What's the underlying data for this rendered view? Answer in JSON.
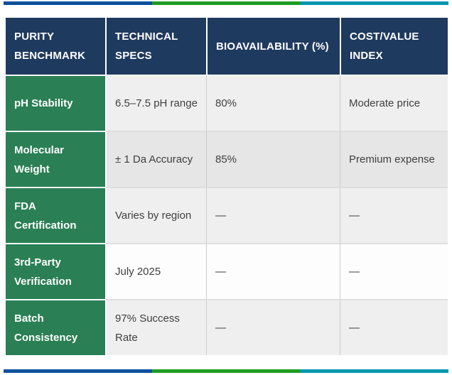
{
  "accent_bar": {
    "segments": [
      {
        "name": "blue",
        "color": "#0d519c"
      },
      {
        "name": "green",
        "color": "#1f9d23"
      },
      {
        "name": "teal",
        "color": "#0397ad"
      }
    ]
  },
  "theme_colors": {
    "header_bg": "#1f3a5f",
    "benchmark_col_bg": "#2a7f54",
    "row_gray": "#efefef",
    "row_highlight": "#e6e6e6",
    "row_white": "#fdfdfd",
    "cell_text": "#3f3f3f",
    "divider_gray": "#cbcbcb"
  },
  "table": {
    "headers": [
      "PURITY BENCHMARK",
      "TECHNICAL SPECS",
      "BIOAVAILABILITY (%)",
      "COST/VALUE INDEX"
    ],
    "rows": [
      {
        "benchmark": "pH Stability",
        "specs": "6.5–7.5 pH range",
        "bioavailability": "80%",
        "cost_value": "Moderate price"
      },
      {
        "benchmark": "Molecular Weight",
        "specs": "± 1 Da Accuracy",
        "bioavailability": "85%",
        "cost_value": "Premium expense"
      },
      {
        "benchmark": "FDA Certification",
        "specs": "Varies by region",
        "bioavailability": "—",
        "cost_value": "—"
      },
      {
        "benchmark": "3rd-Party Verification",
        "specs": "July 2025",
        "bioavailability": "—",
        "cost_value": "—"
      },
      {
        "benchmark": "Batch Consistency",
        "specs": "97% Success Rate",
        "bioavailability": "—",
        "cost_value": "—"
      }
    ]
  }
}
